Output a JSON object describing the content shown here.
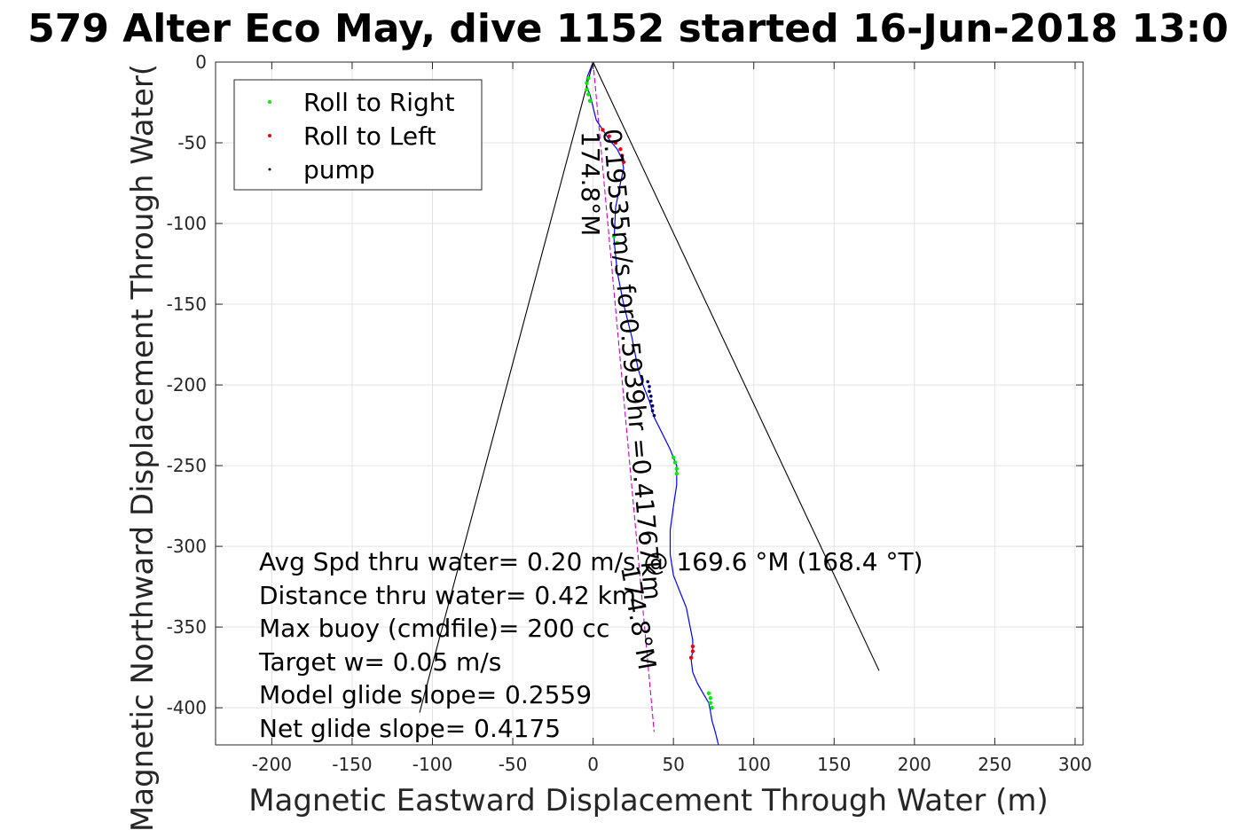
{
  "chart_data": {
    "type": "line",
    "title": "579 Alter Eco May, dive 1152 started 16-Jun-2018 13:0",
    "xlabel": "Magnetic Eastward Displacement Through Water (m)",
    "ylabel": "Magnetic Northward Displacement Through Water(",
    "xlim": [
      -235,
      305
    ],
    "ylim": [
      -423,
      0
    ],
    "xticks": [
      -200,
      -150,
      -100,
      -50,
      0,
      50,
      100,
      150,
      200,
      250,
      300
    ],
    "yticks": [
      0,
      -50,
      -100,
      -150,
      -200,
      -250,
      -300,
      -350,
      -400
    ],
    "grid": true,
    "legend": {
      "placement": "top-left",
      "entries": [
        {
          "label": "Roll to Right",
          "color": "#00ee00",
          "marker": "dot"
        },
        {
          "label": "Roll to Left",
          "color": "#ee0000",
          "marker": "dot"
        },
        {
          "label": "pump",
          "color": "#000000",
          "marker": "dot"
        }
      ]
    },
    "series": [
      {
        "role": "track",
        "color": "#0000ff",
        "x": [
          0,
          -2,
          -4,
          -4,
          -2,
          0,
          2,
          6,
          10,
          15,
          18,
          19,
          17,
          14,
          13,
          15,
          19,
          24,
          28,
          31,
          35,
          38,
          43,
          48,
          52,
          52,
          50,
          48,
          48,
          50,
          54,
          58,
          60,
          62,
          62,
          61,
          62,
          65,
          69,
          72,
          73,
          74,
          76,
          78
        ],
        "y": [
          0,
          -5,
          -10,
          -15,
          -20,
          -28,
          -36,
          -42,
          -48,
          -54,
          -60,
          -66,
          -75,
          -90,
          -110,
          -130,
          -150,
          -170,
          -190,
          -200,
          -210,
          -220,
          -230,
          -240,
          -250,
          -262,
          -275,
          -290,
          -305,
          -318,
          -328,
          -338,
          -348,
          -358,
          -365,
          -370,
          -378,
          -385,
          -392,
          -397,
          -402,
          -408,
          -415,
          -423
        ]
      },
      {
        "role": "heading-line",
        "color": "#cc00cc",
        "style": "dashed",
        "x": [
          0,
          38
        ],
        "y": [
          0,
          -415
        ]
      },
      {
        "role": "cone",
        "color": "#000000",
        "x": [
          -108,
          0,
          178
        ],
        "y": [
          -403,
          0,
          -377
        ]
      }
    ],
    "markers": {
      "roll_right": {
        "color": "#00ee00",
        "x": [
          -3,
          -4,
          -4,
          -3,
          -2,
          50,
          51,
          52,
          52,
          72,
          73,
          73,
          74,
          13,
          15
        ],
        "y": [
          -10,
          -13,
          -17,
          -20,
          -24,
          -245,
          -248,
          -252,
          -255,
          -391,
          -394,
          -397,
          -400,
          -108,
          -112
        ]
      },
      "roll_left": {
        "color": "#ee0000",
        "x": [
          6,
          10,
          14,
          17,
          18,
          19,
          62,
          62,
          61
        ],
        "y": [
          -42,
          -46,
          -50,
          -54,
          -58,
          -62,
          -362,
          -365,
          -369
        ]
      },
      "pump": {
        "color": "#000066",
        "x": [
          34,
          35,
          35,
          36,
          36,
          37,
          37,
          38
        ],
        "y": [
          -198,
          -201,
          -204,
          -207,
          -210,
          -213,
          -216,
          -219
        ]
      }
    },
    "annotations": {
      "heading_rotated": "174.8°M",
      "speed_rotated": "0.19535m/s for0.5939hr =0.41767km",
      "heading_rotated_lower": "174.8°M",
      "lines": [
        "Avg Spd thru water=  0.20 m/s @ 169.6 °M (168.4 °T)",
        "Distance thru water=  0.42 km",
        "Max buoy (cmdfile)= 200 cc",
        "Target w= 0.05 m/s",
        "Model glide slope= 0.2559",
        "Net glide slope= 0.4175"
      ]
    }
  }
}
